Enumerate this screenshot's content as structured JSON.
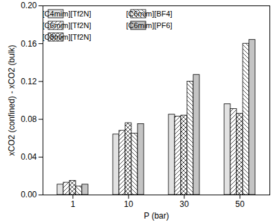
{
  "chart_data": {
    "type": "bar",
    "x_label": "P (bar)",
    "y_label": "xCO2 (confined) - xCO2 (bulk)",
    "categories": [
      "1",
      "10",
      "30",
      "50"
    ],
    "series": [
      {
        "name": "[C4mim][Tf2N]",
        "color": "#e2e2e2",
        "values": [
          0.011,
          0.064,
          0.085,
          0.096
        ]
      },
      {
        "name": "[C6mim][Tf2N]",
        "color": "#ffffff",
        "values": [
          0.013,
          0.068,
          0.083,
          0.091
        ]
      },
      {
        "name": "[C8mim][Tf2N]",
        "color": "#ffffff",
        "values": [
          0.015,
          0.076,
          0.084,
          0.086
        ]
      },
      {
        "name": "[C6mim][BF4]",
        "color": "#ffffff",
        "values": [
          0.009,
          0.065,
          0.12,
          0.16
        ]
      },
      {
        "name": "[C6mim][PF6]",
        "color": "#c4c4c4",
        "values": [
          0.011,
          0.075,
          0.127,
          0.164
        ]
      }
    ],
    "ylim": [
      0,
      0.2
    ],
    "yticks": [
      {
        "value": 0,
        "label": "0.00"
      },
      0.04,
      0.08,
      0.12,
      0.16,
      {
        "value": 0.2,
        "label": "0.20"
      }
    ],
    "grid": false,
    "legend": "top-left"
  }
}
